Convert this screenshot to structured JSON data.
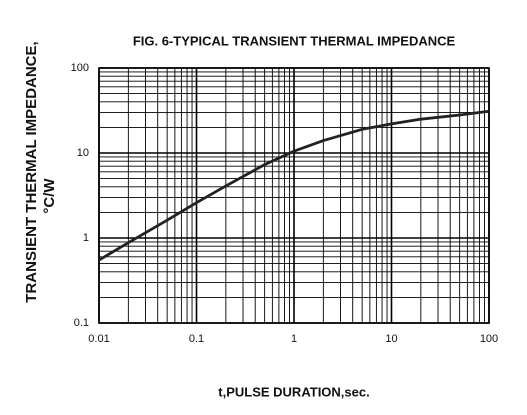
{
  "chart_data": {
    "type": "line",
    "title": "FIG. 6-TYPICAL TRANSIENT THERMAL IMPEDANCE",
    "xlabel": "t,PULSE DURATION,sec.",
    "ylabel": [
      "TRANSIENT THERMAL IMPEDANCE,",
      "°C/W"
    ],
    "x": [
      0.01,
      0.02,
      0.05,
      0.1,
      0.2,
      0.5,
      1,
      2,
      5,
      10,
      20,
      50,
      100
    ],
    "values": [
      0.55,
      0.88,
      1.62,
      2.6,
      4.1,
      7.3,
      10.5,
      14,
      19,
      22,
      25,
      28,
      31
    ],
    "color": "#222222",
    "xlim": [
      0.01,
      100
    ],
    "ylim": [
      0.1,
      100
    ],
    "xticks": [
      0.01,
      0.1,
      1,
      10,
      100
    ],
    "yticks": [
      0.1,
      1,
      10,
      100
    ],
    "xscale": "log",
    "yscale": "log",
    "grid": true,
    "minor_grid": true
  }
}
